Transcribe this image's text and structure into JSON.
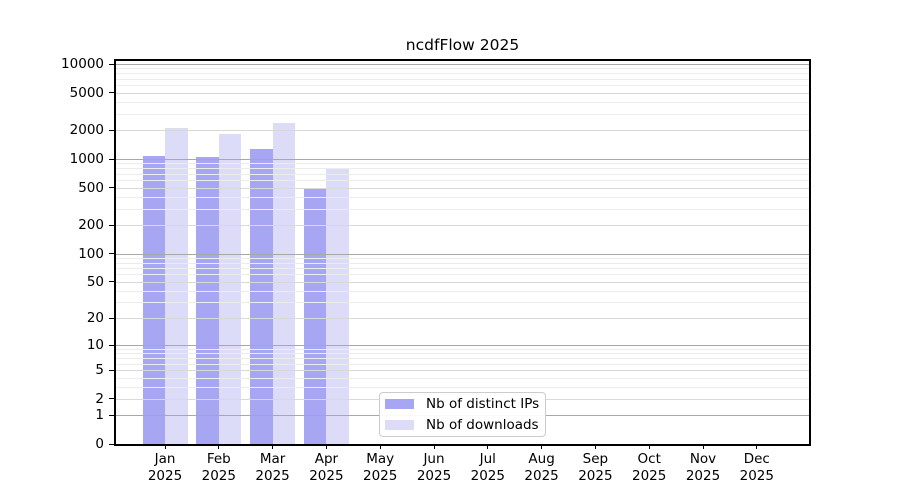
{
  "chart_data": {
    "type": "bar",
    "title": "ncdfFlow 2025",
    "categories": [
      "Jan",
      "Feb",
      "Mar",
      "Apr",
      "May",
      "Jun",
      "Jul",
      "Aug",
      "Sep",
      "Oct",
      "Nov",
      "Dec"
    ],
    "x_year": "2025",
    "series": [
      {
        "name": "Nb of distinct IPs",
        "color": "#a6a6f2",
        "values": [
          1080,
          1050,
          1270,
          490,
          null,
          null,
          null,
          null,
          null,
          null,
          null,
          null
        ]
      },
      {
        "name": "Nb of downloads",
        "color": "#dcdcf9",
        "values": [
          2100,
          1830,
          2390,
          810,
          null,
          null,
          null,
          null,
          null,
          null,
          null,
          null
        ]
      }
    ],
    "y_axis": {
      "scale": "log1p",
      "tick_values": [
        0,
        1,
        2,
        5,
        10,
        20,
        50,
        100,
        200,
        500,
        1000,
        2000,
        5000,
        10000
      ],
      "range": [
        0,
        10000
      ]
    },
    "grid": "horizontal",
    "legend": {
      "position": "bottom-center"
    }
  },
  "colors": {
    "background": "#ffffff",
    "axis": "#000000",
    "grid_major": "#a8a8a8",
    "grid_mid": "#d9d9d9",
    "grid_minor": "#ececec",
    "legend_border": "#cccccc"
  }
}
